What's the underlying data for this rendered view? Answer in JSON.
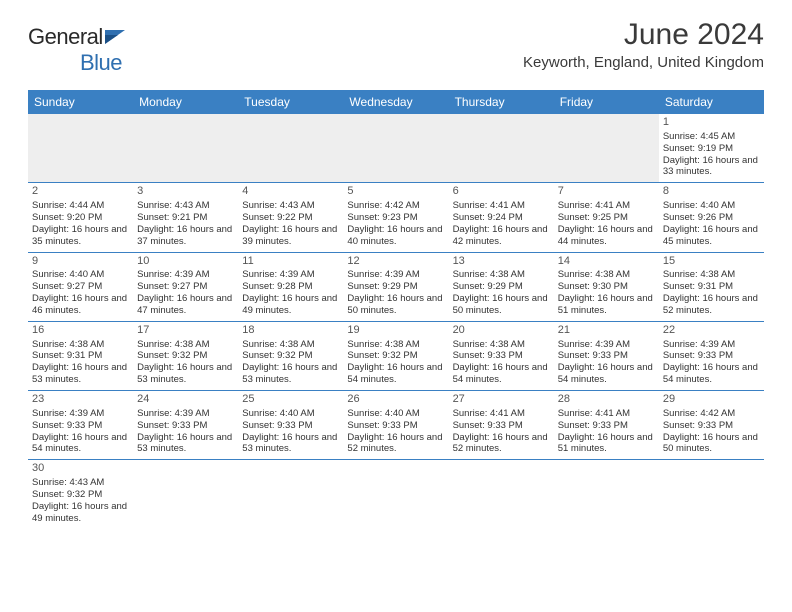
{
  "brand": {
    "name_part1": "General",
    "name_part2": "Blue"
  },
  "title": "June 2024",
  "location": "Keyworth, England, United Kingdom",
  "colors": {
    "header_bg": "#3a80c3",
    "header_text": "#ffffff",
    "grid_line": "#3a80c3",
    "blank_bg": "#eeeeee",
    "text": "#333333",
    "brand_blue": "#2f6fb0"
  },
  "day_headers": [
    "Sunday",
    "Monday",
    "Tuesday",
    "Wednesday",
    "Thursday",
    "Friday",
    "Saturday"
  ],
  "weeks": [
    [
      null,
      null,
      null,
      null,
      null,
      null,
      {
        "d": "1",
        "sr": "4:45 AM",
        "ss": "9:19 PM",
        "dl": "16 hours and 33 minutes."
      }
    ],
    [
      {
        "d": "2",
        "sr": "4:44 AM",
        "ss": "9:20 PM",
        "dl": "16 hours and 35 minutes."
      },
      {
        "d": "3",
        "sr": "4:43 AM",
        "ss": "9:21 PM",
        "dl": "16 hours and 37 minutes."
      },
      {
        "d": "4",
        "sr": "4:43 AM",
        "ss": "9:22 PM",
        "dl": "16 hours and 39 minutes."
      },
      {
        "d": "5",
        "sr": "4:42 AM",
        "ss": "9:23 PM",
        "dl": "16 hours and 40 minutes."
      },
      {
        "d": "6",
        "sr": "4:41 AM",
        "ss": "9:24 PM",
        "dl": "16 hours and 42 minutes."
      },
      {
        "d": "7",
        "sr": "4:41 AM",
        "ss": "9:25 PM",
        "dl": "16 hours and 44 minutes."
      },
      {
        "d": "8",
        "sr": "4:40 AM",
        "ss": "9:26 PM",
        "dl": "16 hours and 45 minutes."
      }
    ],
    [
      {
        "d": "9",
        "sr": "4:40 AM",
        "ss": "9:27 PM",
        "dl": "16 hours and 46 minutes."
      },
      {
        "d": "10",
        "sr": "4:39 AM",
        "ss": "9:27 PM",
        "dl": "16 hours and 47 minutes."
      },
      {
        "d": "11",
        "sr": "4:39 AM",
        "ss": "9:28 PM",
        "dl": "16 hours and 49 minutes."
      },
      {
        "d": "12",
        "sr": "4:39 AM",
        "ss": "9:29 PM",
        "dl": "16 hours and 50 minutes."
      },
      {
        "d": "13",
        "sr": "4:38 AM",
        "ss": "9:29 PM",
        "dl": "16 hours and 50 minutes."
      },
      {
        "d": "14",
        "sr": "4:38 AM",
        "ss": "9:30 PM",
        "dl": "16 hours and 51 minutes."
      },
      {
        "d": "15",
        "sr": "4:38 AM",
        "ss": "9:31 PM",
        "dl": "16 hours and 52 minutes."
      }
    ],
    [
      {
        "d": "16",
        "sr": "4:38 AM",
        "ss": "9:31 PM",
        "dl": "16 hours and 53 minutes."
      },
      {
        "d": "17",
        "sr": "4:38 AM",
        "ss": "9:32 PM",
        "dl": "16 hours and 53 minutes."
      },
      {
        "d": "18",
        "sr": "4:38 AM",
        "ss": "9:32 PM",
        "dl": "16 hours and 53 minutes."
      },
      {
        "d": "19",
        "sr": "4:38 AM",
        "ss": "9:32 PM",
        "dl": "16 hours and 54 minutes."
      },
      {
        "d": "20",
        "sr": "4:38 AM",
        "ss": "9:33 PM",
        "dl": "16 hours and 54 minutes."
      },
      {
        "d": "21",
        "sr": "4:39 AM",
        "ss": "9:33 PM",
        "dl": "16 hours and 54 minutes."
      },
      {
        "d": "22",
        "sr": "4:39 AM",
        "ss": "9:33 PM",
        "dl": "16 hours and 54 minutes."
      }
    ],
    [
      {
        "d": "23",
        "sr": "4:39 AM",
        "ss": "9:33 PM",
        "dl": "16 hours and 54 minutes."
      },
      {
        "d": "24",
        "sr": "4:39 AM",
        "ss": "9:33 PM",
        "dl": "16 hours and 53 minutes."
      },
      {
        "d": "25",
        "sr": "4:40 AM",
        "ss": "9:33 PM",
        "dl": "16 hours and 53 minutes."
      },
      {
        "d": "26",
        "sr": "4:40 AM",
        "ss": "9:33 PM",
        "dl": "16 hours and 52 minutes."
      },
      {
        "d": "27",
        "sr": "4:41 AM",
        "ss": "9:33 PM",
        "dl": "16 hours and 52 minutes."
      },
      {
        "d": "28",
        "sr": "4:41 AM",
        "ss": "9:33 PM",
        "dl": "16 hours and 51 minutes."
      },
      {
        "d": "29",
        "sr": "4:42 AM",
        "ss": "9:33 PM",
        "dl": "16 hours and 50 minutes."
      }
    ],
    [
      {
        "d": "30",
        "sr": "4:43 AM",
        "ss": "9:32 PM",
        "dl": "16 hours and 49 minutes."
      },
      null,
      null,
      null,
      null,
      null,
      null
    ]
  ],
  "labels": {
    "sunrise": "Sunrise:",
    "sunset": "Sunset:",
    "daylight": "Daylight:"
  }
}
